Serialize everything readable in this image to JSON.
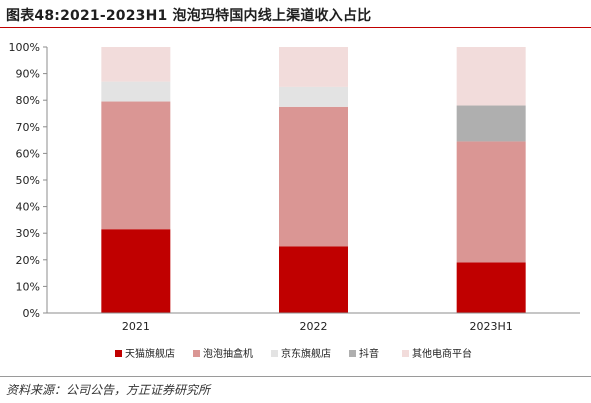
{
  "header": {
    "title": "图表48:2021-2023H1 泡泡玛特国内线上渠道收入占比"
  },
  "footer": {
    "source": "资料来源：公司公告，方正证券研究所"
  },
  "chart_data": {
    "type": "bar",
    "stacked": true,
    "categories": [
      "2021",
      "2022",
      "2023H1"
    ],
    "ylim": [
      0,
      100
    ],
    "yticks": [
      "0%",
      "10%",
      "20%",
      "30%",
      "40%",
      "50%",
      "60%",
      "70%",
      "80%",
      "90%",
      "100%"
    ],
    "grid": false,
    "legend_position": "bottom",
    "series": [
      {
        "name": "天猫旗舰店",
        "color": "#c00000",
        "values": [
          31.5,
          25,
          19
        ]
      },
      {
        "name": "泡泡抽盒机",
        "color": "#da9694",
        "values": [
          48,
          52.5,
          45.5
        ]
      },
      {
        "name": "京东旗舰店",
        "color": "#e3e3e3",
        "values": [
          7.5,
          7.5,
          0
        ]
      },
      {
        "name": "抖音",
        "color": "#afafaf",
        "values": [
          0,
          0,
          13.5
        ]
      },
      {
        "name": "其他电商平台",
        "color": "#f2dcdb",
        "values": [
          13,
          15,
          22
        ]
      }
    ]
  }
}
